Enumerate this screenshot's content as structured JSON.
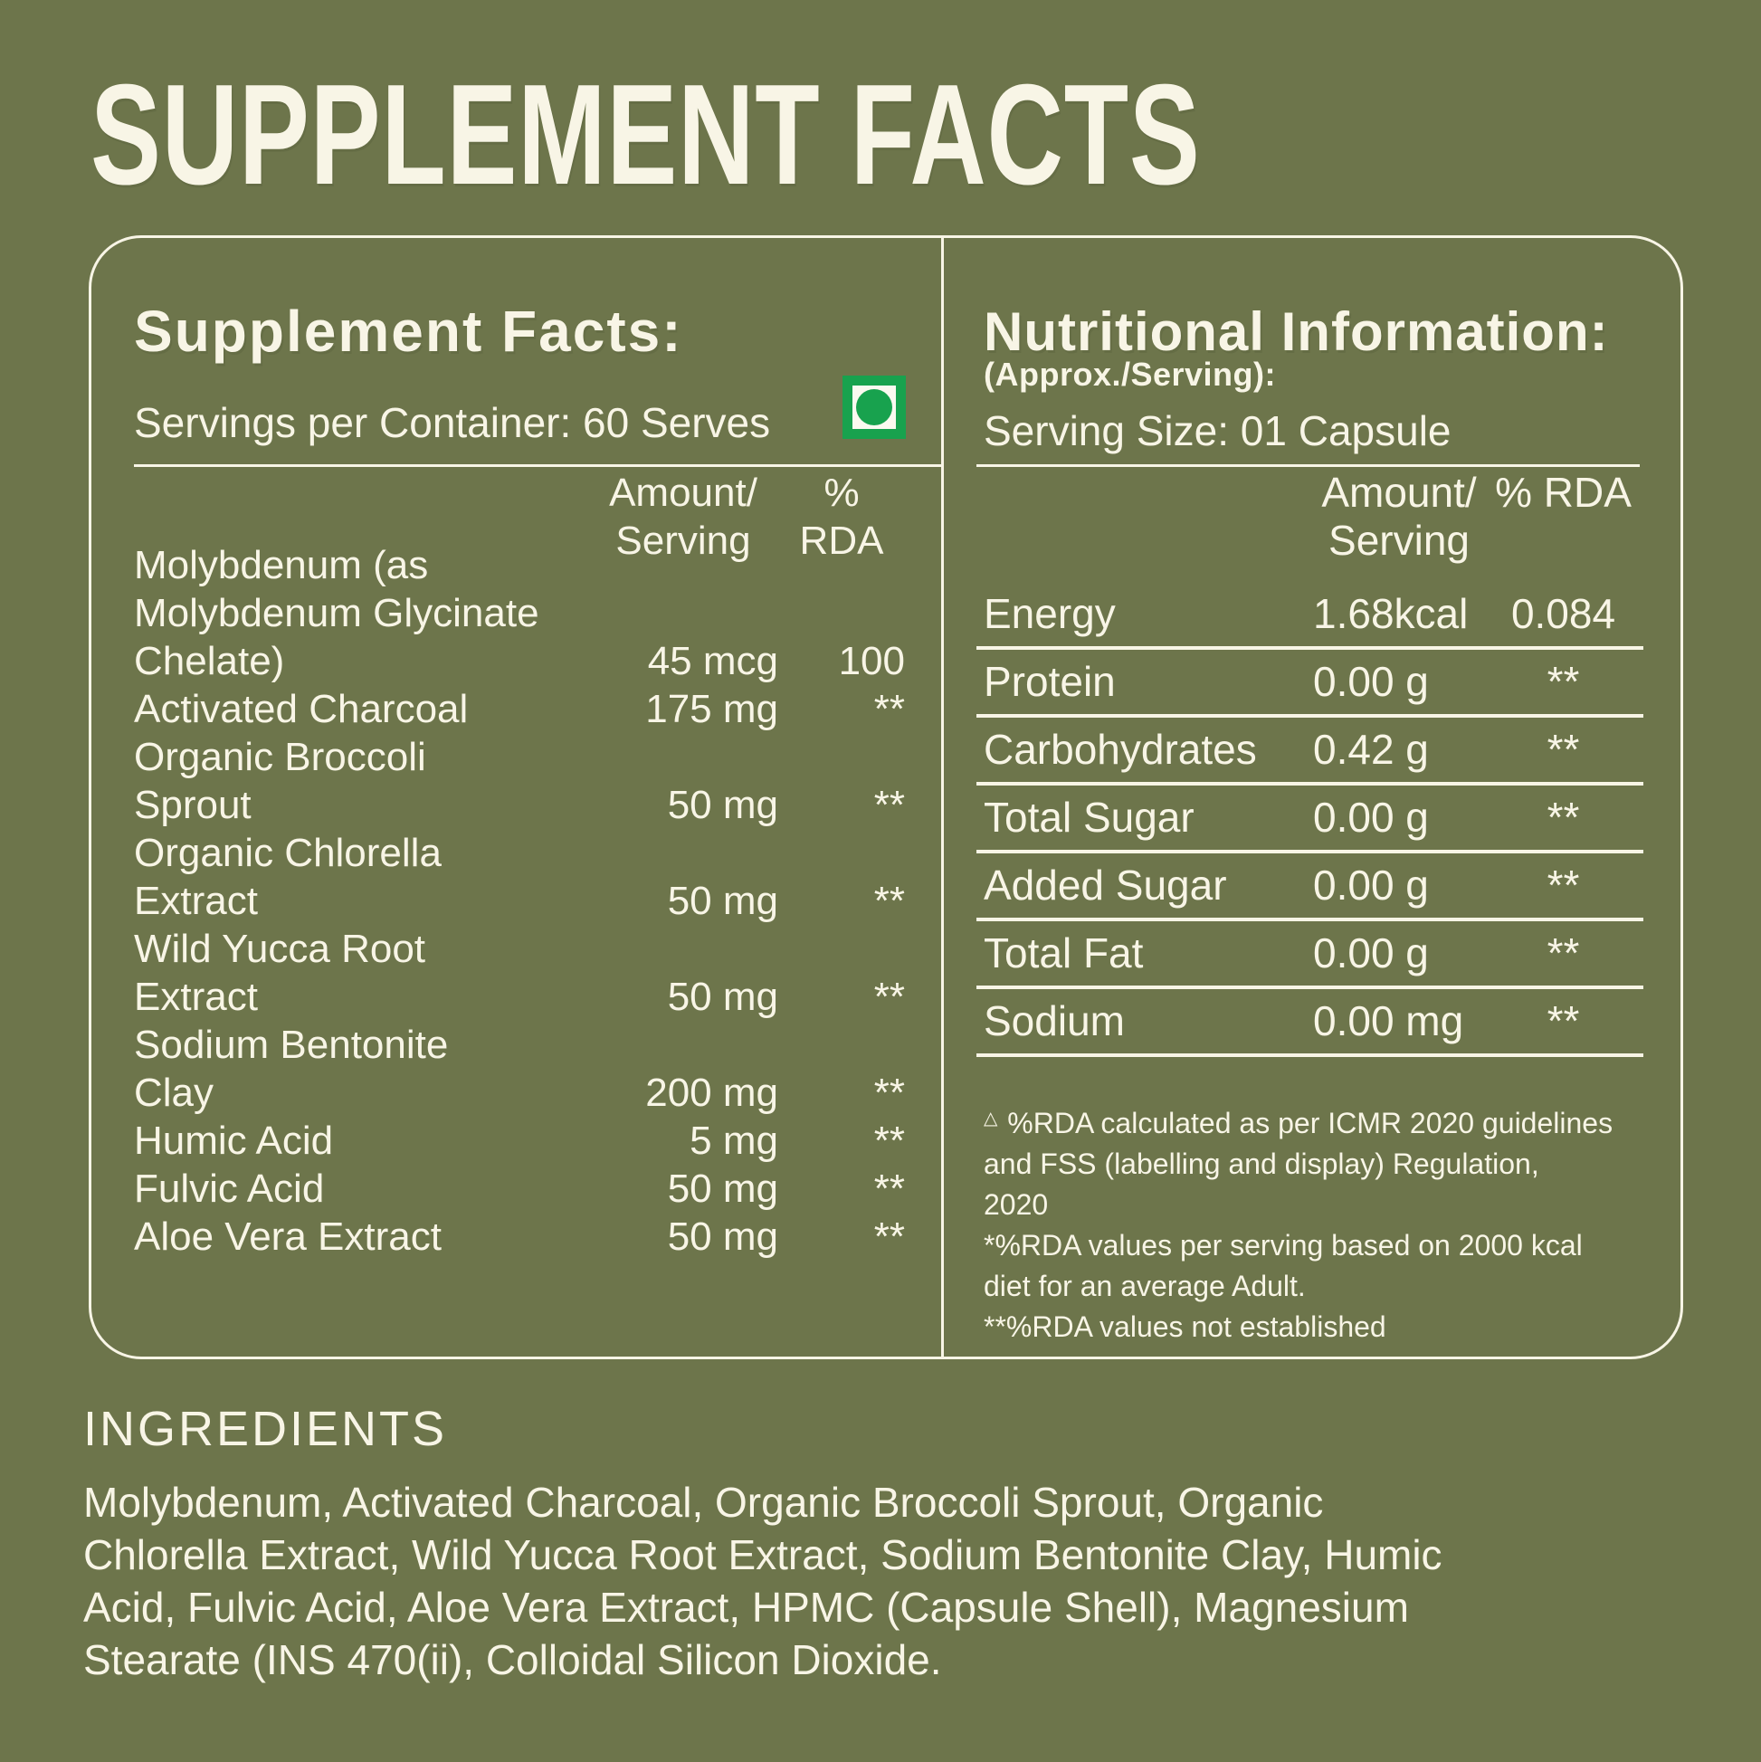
{
  "title": "SUPPLEMENT FACTS",
  "panel": {
    "left": {
      "heading": "Supplement Facts:",
      "servings_label": "Servings per Container: 60 Serves",
      "col_amount": "Amount/\nServing",
      "col_rda": "% RDA",
      "rows": [
        {
          "name": "Molybdenum  (as\nMolybdenum Glycinate\nChelate)",
          "amount": "45 mcg",
          "rda": "100"
        },
        {
          "name": "Activated Charcoal",
          "amount": "175 mg",
          "rda": "**"
        },
        {
          "name": "Organic Broccoli\nSprout",
          "amount": "50 mg",
          "rda": "**"
        },
        {
          "name": "Organic Chlorella\nExtract",
          "amount": "50 mg",
          "rda": "**"
        },
        {
          "name": "Wild Yucca Root\nExtract",
          "amount": "50 mg",
          "rda": "**"
        },
        {
          "name": "Sodium Bentonite\nClay",
          "amount": "200 mg",
          "rda": "**"
        },
        {
          "name": "Humic Acid",
          "amount": "5 mg",
          "rda": "**"
        },
        {
          "name": "Fulvic Acid",
          "amount": "50 mg",
          "rda": "**"
        },
        {
          "name": "Aloe Vera Extract",
          "amount": "50 mg",
          "rda": "**"
        }
      ]
    },
    "right": {
      "heading": "Nutritional Information:",
      "subheading": "(Approx./Serving):",
      "serving_size": "Serving Size: 01 Capsule",
      "col_amount": "Amount/\nServing",
      "col_rda": "% RDA",
      "rows": [
        {
          "name": "Energy",
          "amount": "1.68kcal",
          "rda": "0.084"
        },
        {
          "name": "Protein",
          "amount": "0.00 g",
          "rda": "**"
        },
        {
          "name": "Carbohydrates",
          "amount": "0.42 g",
          "rda": "**"
        },
        {
          "name": "Total Sugar",
          "amount": "0.00 g",
          "rda": "**"
        },
        {
          "name": "Added Sugar",
          "amount": "0.00 g",
          "rda": "**"
        },
        {
          "name": "Total Fat",
          "amount": "0.00 g",
          "rda": "**"
        },
        {
          "name": "Sodium",
          "amount": "0.00 mg",
          "rda": "**"
        }
      ],
      "notes": [
        {
          "symbol": "△",
          "text": " %RDA calculated as per ICMR 2020 guidelines\nand FSS (labelling and display) Regulation,\n2020"
        },
        {
          "symbol": "",
          "text": "*%RDA values per serving based on 2000 kcal\ndiet for an average Adult."
        },
        {
          "symbol": "",
          "text": "**%RDA values not established"
        }
      ]
    }
  },
  "ingredients": {
    "heading": "INGREDIENTS",
    "text": "Molybdenum, Activated Charcoal, Organic Broccoli Sprout, Organic\nChlorella Extract, Wild Yucca Root Extract, Sodium Bentonite Clay, Humic\nAcid, Fulvic Acid, Aloe Vera Extract, HPMC (Capsule Shell), Magnesium\nStearate (INS 470(ii), Colloidal Silicon Dioxide."
  },
  "colors": {
    "background": "#6D754B",
    "text_cream": "#F8F5E6",
    "veg_mark_green": "#18A24E"
  }
}
